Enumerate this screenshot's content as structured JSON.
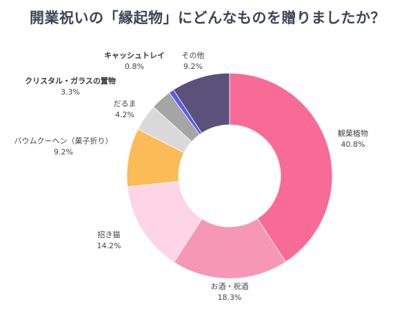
{
  "chart_data": {
    "type": "pie",
    "donut": true,
    "title": "開業祝いの「縁起物」にどんなものを贈りましたか？",
    "unit": "%",
    "start": "12 o'clock, clockwise",
    "slices": [
      {
        "label": "観葉植物",
        "value": 40.8,
        "display": "40.8%",
        "color": "#f76b96"
      },
      {
        "label": "お酒・祝酒",
        "value": 18.3,
        "display": "18.3%",
        "color": "#f597b5"
      },
      {
        "label": "招き猫",
        "value": 14.2,
        "display": "14.2%",
        "color": "#fdd5e4"
      },
      {
        "label": "バウムクーヘン（菓子折り）",
        "value": 9.2,
        "display": "9.2%",
        "color": "#fbbb56"
      },
      {
        "label": "だるま",
        "value": 4.2,
        "display": "4.2%",
        "color": "#d9d9d9"
      },
      {
        "label": "クリスタル・ガラスの置物",
        "value": 3.3,
        "display": "3.3%",
        "color": "#a5a5a5"
      },
      {
        "label": "キャッシュトレイ",
        "value": 0.8,
        "display": "0.8%",
        "color": "#5b5ee0"
      },
      {
        "label": "その他",
        "value": 9.2,
        "display": "9.2%",
        "color": "#5b527b"
      }
    ]
  }
}
